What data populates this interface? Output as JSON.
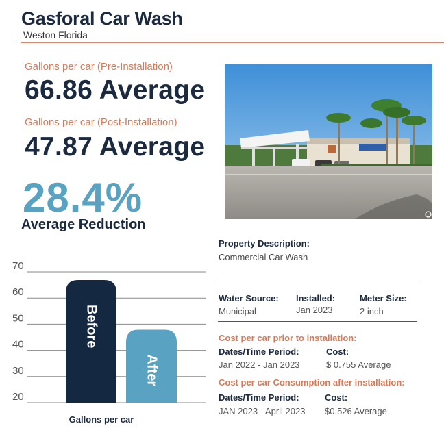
{
  "header": {
    "title": "Gasforal Car Wash",
    "subtitle": "Weston Florida"
  },
  "stats": {
    "pre_label": "Gallons per car (Pre-Installation)",
    "pre_value": "66.86 Average",
    "post_label": "Gallons per car (Post-Installation)",
    "post_value": "47.87 Average",
    "reduction_value": "28.4%",
    "reduction_label": "Average Reduction"
  },
  "property": {
    "desc_title": "Property Description:",
    "desc_value": "Commercial Car Wash",
    "water_source_title": "Water Source:",
    "water_source_value": "Municipal",
    "installed_title": "Installed:",
    "installed_value": "Jan 2023",
    "meter_title": "Meter Size:",
    "meter_value": "2 inch"
  },
  "cost_prior": {
    "heading": "Cost per car prior to installation:",
    "period_title": "Dates/Time Period:",
    "period_value": "Jan 2022 - Jan 2023",
    "cost_title": "Cost:",
    "cost_value": "$ 0.755 Average"
  },
  "cost_after": {
    "heading": "Cost per car Consumption after installation:",
    "period_title": "Dates/Time Period:",
    "period_value": "JAN 2023 - April 2023",
    "cost_title": "Cost:",
    "cost_value": "$0.526 Average"
  },
  "chart_data": {
    "type": "bar",
    "categories": [
      "Before",
      "After"
    ],
    "values": [
      66.86,
      47.87
    ],
    "xlabel": "Gallons  per car",
    "ylabel": "",
    "ylim": [
      20,
      70
    ],
    "yticks": [
      20,
      30,
      40,
      50,
      60,
      70
    ],
    "colors": [
      "#152842",
      "#5aa2c2"
    ],
    "grid": true
  }
}
